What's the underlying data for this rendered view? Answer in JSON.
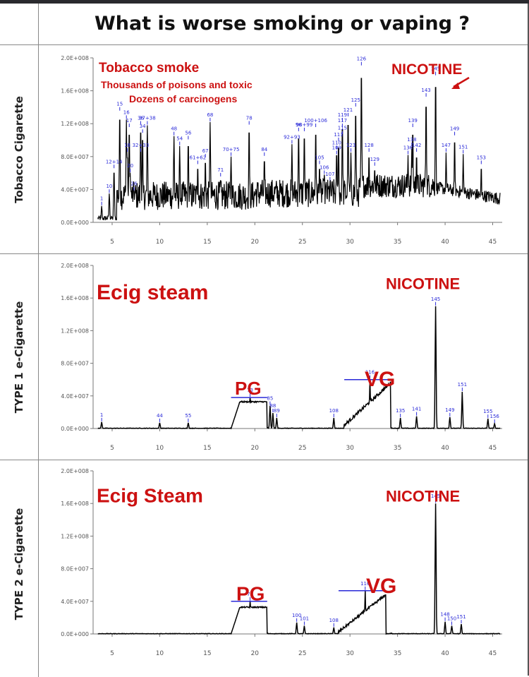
{
  "title": "What is worse smoking or vaping ?",
  "colors": {
    "annotation": "#cc1111",
    "peak_label": "#2a2ad8",
    "trace": "#000000"
  },
  "chart_data": [
    {
      "type": "line",
      "panel_label": "Tobacco Cigarette",
      "ylim": [
        0,
        200000000
      ],
      "yticks": [
        "0.0E+000",
        "4.0E+007",
        "8.0E+007",
        "1.2E+008",
        "1.6E+008",
        "2.0E+008"
      ],
      "xlim": [
        3,
        46
      ],
      "xticks": [
        "5",
        "10",
        "15",
        "20",
        "25",
        "30",
        "35",
        "40",
        "45"
      ],
      "annotations": [
        "Tobacco smoke",
        "Thousands of poisons and toxic",
        "Dozens of carcinogens",
        "NICOTINE"
      ],
      "peaks": [
        {
          "label": "1",
          "x": 3.9,
          "y": 20000000
        },
        {
          "label": "10",
          "x": 4.7,
          "y": 35000000
        },
        {
          "label": "12+14",
          "x": 5.2,
          "y": 65000000
        },
        {
          "label": "15",
          "x": 5.8,
          "y": 135000000
        },
        {
          "label": "16",
          "x": 6.5,
          "y": 125000000
        },
        {
          "label": "17",
          "x": 6.8,
          "y": 115000000
        },
        {
          "label": "18",
          "x": 6.6,
          "y": 85000000
        },
        {
          "label": "20",
          "x": 6.9,
          "y": 60000000
        },
        {
          "label": "26",
          "x": 7.3,
          "y": 38000000
        },
        {
          "label": "36",
          "x": 8.0,
          "y": 118000000
        },
        {
          "label": "34",
          "x": 8.2,
          "y": 108000000
        },
        {
          "label": "32+33",
          "x": 8.0,
          "y": 85000000
        },
        {
          "label": "37+38",
          "x": 8.7,
          "y": 118000000
        },
        {
          "label": "48",
          "x": 11.5,
          "y": 105000000
        },
        {
          "label": "54",
          "x": 12.1,
          "y": 93000000
        },
        {
          "label": "56",
          "x": 13.0,
          "y": 100000000
        },
        {
          "label": "61+62",
          "x": 14.0,
          "y": 70000000
        },
        {
          "label": "67",
          "x": 14.8,
          "y": 78000000
        },
        {
          "label": "68",
          "x": 15.3,
          "y": 122000000
        },
        {
          "label": "71",
          "x": 16.4,
          "y": 55000000
        },
        {
          "label": "70+75",
          "x": 17.5,
          "y": 80000000
        },
        {
          "label": "78",
          "x": 19.4,
          "y": 118000000
        },
        {
          "label": "84",
          "x": 21.0,
          "y": 80000000
        },
        {
          "label": "92+93",
          "x": 23.9,
          "y": 95000000
        },
        {
          "label": "96",
          "x": 24.6,
          "y": 110000000
        },
        {
          "label": "98+99",
          "x": 25.2,
          "y": 110000000
        },
        {
          "label": "100+106",
          "x": 26.4,
          "y": 115000000
        },
        {
          "label": "105",
          "x": 26.8,
          "y": 70000000
        },
        {
          "label": "106",
          "x": 27.3,
          "y": 58000000
        },
        {
          "label": "107",
          "x": 27.9,
          "y": 50000000
        },
        {
          "label": "109",
          "x": 28.6,
          "y": 82000000
        },
        {
          "label": "110",
          "x": 28.6,
          "y": 88000000
        },
        {
          "label": "111",
          "x": 28.8,
          "y": 98000000
        },
        {
          "label": "115",
          "x": 29.2,
          "y": 106000000
        },
        {
          "label": "117",
          "x": 29.2,
          "y": 115000000
        },
        {
          "label": "119",
          "x": 29.2,
          "y": 122000000
        },
        {
          "label": "121",
          "x": 29.8,
          "y": 128000000
        },
        {
          "label": "123",
          "x": 30.1,
          "y": 85000000
        },
        {
          "label": "125",
          "x": 30.6,
          "y": 140000000
        },
        {
          "label": "126",
          "x": 31.2,
          "y": 190000000
        },
        {
          "label": "128",
          "x": 32.0,
          "y": 85000000
        },
        {
          "label": "129",
          "x": 32.6,
          "y": 68000000
        },
        {
          "label": "136",
          "x": 36.1,
          "y": 82000000
        },
        {
          "label": "138",
          "x": 36.5,
          "y": 92000000
        },
        {
          "label": "139",
          "x": 36.6,
          "y": 115000000
        },
        {
          "label": "142",
          "x": 37.0,
          "y": 85000000
        },
        {
          "label": "143",
          "x": 38.0,
          "y": 152000000
        },
        {
          "label": "145",
          "x": 39.0,
          "y": 178000000
        },
        {
          "label": "147",
          "x": 40.1,
          "y": 85000000
        },
        {
          "label": "149",
          "x": 41.0,
          "y": 105000000
        },
        {
          "label": "151",
          "x": 41.9,
          "y": 83000000
        },
        {
          "label": "153",
          "x": 43.8,
          "y": 70000000
        }
      ]
    },
    {
      "type": "line",
      "panel_label": "TYPE 1 e-Cigarette",
      "ylim": [
        0,
        200000000
      ],
      "yticks": [
        "0.0E+000",
        "4.0E+007",
        "8.0E+007",
        "1.2E+008",
        "1.6E+008",
        "2.0E+008"
      ],
      "xlim": [
        3,
        46
      ],
      "xticks": [
        "5",
        "10",
        "15",
        "20",
        "25",
        "30",
        "35",
        "40",
        "45"
      ],
      "annotations": [
        "Ecig steam",
        "NICOTINE",
        "PG",
        "VG"
      ],
      "peaks": [
        {
          "label": "1",
          "x": 3.9,
          "y": 8000000
        },
        {
          "label": "44",
          "x": 10.0,
          "y": 7000000
        },
        {
          "label": "55",
          "x": 13.0,
          "y": 7000000
        },
        {
          "label": "73",
          "x": 19.5,
          "y": 38000000
        },
        {
          "label": "85",
          "x": 21.6,
          "y": 28000000
        },
        {
          "label": "88",
          "x": 21.9,
          "y": 19000000
        },
        {
          "label": "89",
          "x": 22.3,
          "y": 13000000
        },
        {
          "label": "108",
          "x": 28.3,
          "y": 13000000
        },
        {
          "label": "116",
          "x": 32.1,
          "y": 60000000
        },
        {
          "label": "135",
          "x": 35.3,
          "y": 13000000
        },
        {
          "label": "141",
          "x": 37.0,
          "y": 15000000
        },
        {
          "label": "145",
          "x": 39.0,
          "y": 150000000
        },
        {
          "label": "149",
          "x": 40.5,
          "y": 14000000
        },
        {
          "label": "151",
          "x": 41.8,
          "y": 45000000
        },
        {
          "label": "155",
          "x": 44.5,
          "y": 12000000
        },
        {
          "label": "156",
          "x": 45.2,
          "y": 6000000
        }
      ]
    },
    {
      "type": "line",
      "panel_label": "TYPE 2 e-Cigarette",
      "ylim": [
        0,
        200000000
      ],
      "yticks": [
        "0.0E+000",
        "4.0E+007",
        "8.0E+007",
        "1.2E+008",
        "1.6E+008",
        "2.0E+008"
      ],
      "xlim": [
        3,
        46
      ],
      "xticks": [
        "5",
        "10",
        "15",
        "20",
        "25",
        "30",
        "35",
        "40",
        "45"
      ],
      "annotations": [
        "Ecig Steam",
        "NICOTINE",
        "PG",
        "VG"
      ],
      "peaks": [
        {
          "label": "73",
          "x": 19.5,
          "y": 40000000
        },
        {
          "label": "100",
          "x": 24.4,
          "y": 14000000
        },
        {
          "label": "101",
          "x": 25.2,
          "y": 10000000
        },
        {
          "label": "108",
          "x": 28.3,
          "y": 8000000
        },
        {
          "label": "116",
          "x": 31.6,
          "y": 53000000
        },
        {
          "label": "145",
          "x": 39.0,
          "y": 160000000
        },
        {
          "label": "148",
          "x": 40.0,
          "y": 15000000
        },
        {
          "label": "150",
          "x": 40.7,
          "y": 10000000
        },
        {
          "label": "151",
          "x": 41.7,
          "y": 12000000
        }
      ]
    }
  ]
}
